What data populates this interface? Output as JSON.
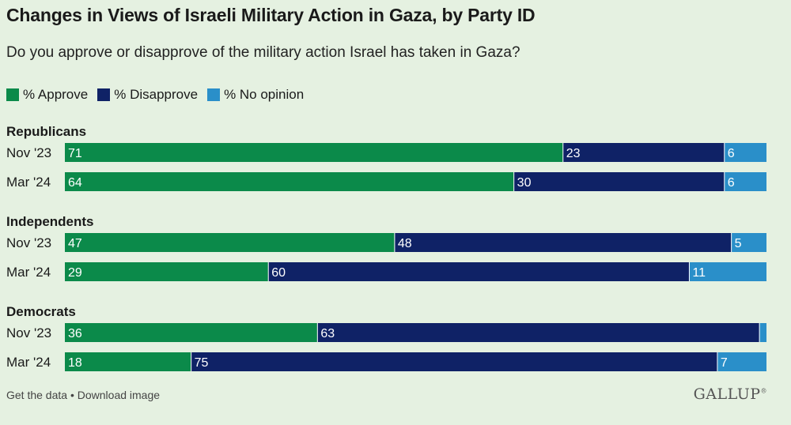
{
  "title": "Changes in Views of Israeli Military Action in Gaza, by Party ID",
  "subtitle": "Do you approve or disapprove of the military action Israel has taken in Gaza?",
  "legend": [
    {
      "label": "% Approve",
      "color": "#0b8a4a"
    },
    {
      "label": "% Disapprove",
      "color": "#0f2266"
    },
    {
      "label": "% No opinion",
      "color": "#2a8fc9"
    }
  ],
  "footer": {
    "get_data": "Get the data",
    "separator": "•",
    "download": "Download image",
    "logo": "GALLUP",
    "logo_mark": "®"
  },
  "chart_data": {
    "type": "stacked-bar-horizontal",
    "title": "Changes in Views of Israeli Military Action in Gaza, by Party ID",
    "series_names": [
      "% Approve",
      "% Disapprove",
      "% No opinion"
    ],
    "colors": [
      "#0b8a4a",
      "#0f2266",
      "#2a8fc9"
    ],
    "xlim": [
      0,
      100
    ],
    "groups": [
      {
        "name": "Republicans",
        "rows": [
          {
            "label": "Nov '23",
            "values": [
              71,
              23,
              6
            ],
            "value_labels": [
              "71",
              "23",
              "6"
            ]
          },
          {
            "label": "Mar '24",
            "values": [
              64,
              30,
              6
            ],
            "value_labels": [
              "64",
              "30",
              "6"
            ]
          }
        ]
      },
      {
        "name": "Independents",
        "rows": [
          {
            "label": "Nov '23",
            "values": [
              47,
              48,
              5
            ],
            "value_labels": [
              "47",
              "48",
              "5"
            ]
          },
          {
            "label": "Mar '24",
            "values": [
              29,
              60,
              11
            ],
            "value_labels": [
              "29",
              "60",
              "11"
            ]
          }
        ]
      },
      {
        "name": "Democrats",
        "rows": [
          {
            "label": "Nov '23",
            "values": [
              36,
              63,
              1
            ],
            "value_labels": [
              "36",
              "63",
              ""
            ]
          },
          {
            "label": "Mar '24",
            "values": [
              18,
              75,
              7
            ],
            "value_labels": [
              "18",
              "75",
              "7"
            ]
          }
        ]
      }
    ]
  }
}
